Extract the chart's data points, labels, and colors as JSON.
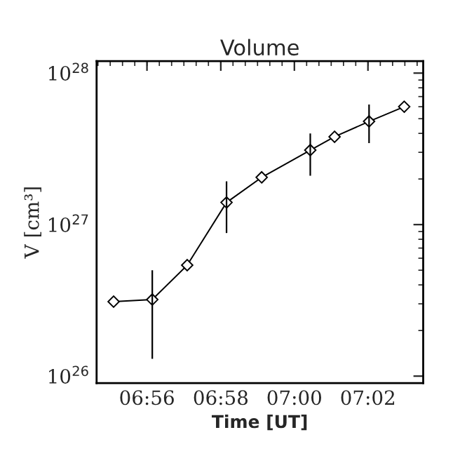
{
  "chart_data": {
    "type": "line",
    "title": "Volume",
    "xlabel": "Time [UT]",
    "ylabel": "V [cm³]",
    "x": [
      6.9182,
      6.9357,
      6.9515,
      6.9693,
      6.9852,
      7.0072,
      7.0182,
      7.0338,
      7.0497
    ],
    "series": [
      {
        "color": "#000000",
        "values": [
          3.1e+26,
          3.2e+26,
          5.4e+26,
          1.4e+27,
          2.05e+27,
          3.1e+27,
          3.8e+27,
          4.8e+27,
          6e+27
        ],
        "errors": [
          null,
          [
            1.3e+26,
            5e+26
          ],
          null,
          [
            8.8e+26,
            1.93e+27
          ],
          null,
          [
            2.1e+27,
            4e+27
          ],
          null,
          [
            3.45e+27,
            6.2e+27
          ],
          null
        ]
      }
    ],
    "log": "y",
    "marker": "diamond",
    "line_style": "solid",
    "grid": false,
    "xlim": [
      6.9105,
      7.0583
    ],
    "xticks": [
      {
        "value": 6.9333,
        "label": "06:56"
      },
      {
        "value": 6.9667,
        "label": "06:58"
      },
      {
        "value": 7.0,
        "label": "07:00"
      },
      {
        "value": 7.0333,
        "label": "07:02"
      }
    ],
    "ylim": [
      9e+25,
      1.2e+28
    ],
    "yticks": [
      {
        "value": 1e+26,
        "label": "10$^{26}$"
      },
      {
        "value": 1e+27,
        "label": "10$^{27}$"
      },
      {
        "value": 1e+28,
        "label": "10$^{28}$"
      }
    ]
  }
}
